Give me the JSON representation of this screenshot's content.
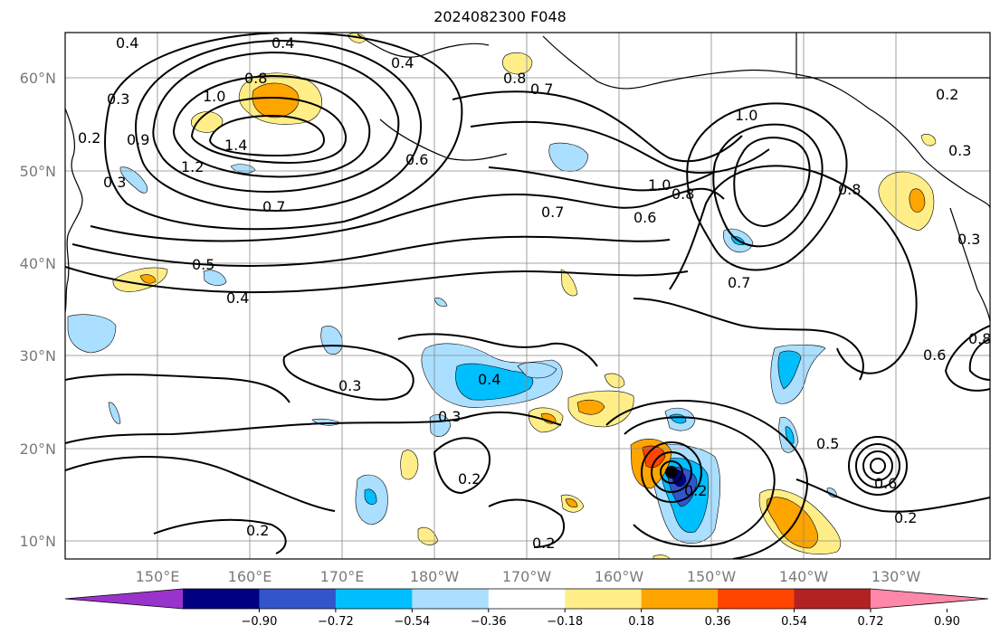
{
  "title": "2024082300 F048",
  "map": {
    "lat_labels": [
      "60°N",
      "50°N",
      "40°N",
      "30°N",
      "20°N",
      "10°N"
    ],
    "lon_labels": [
      "150°E",
      "160°E",
      "170°E",
      "180°W",
      "170°W",
      "160°W",
      "150°W",
      "140°W",
      "130°W"
    ],
    "contour_labels": [
      "0.4",
      "0.4",
      "0.4",
      "0.8",
      "0.8",
      "0.7",
      "1.0",
      "1.4",
      "1.2",
      "1.0",
      "1.0",
      "0.8",
      "0.7",
      "0.6",
      "0.7",
      "0.5",
      "0.4",
      "0.3",
      "0.3",
      "0.4",
      "0.3",
      "0.2",
      "0.2",
      "0.2",
      "0.2",
      "0.5",
      "0.6",
      "0.6",
      "0.7",
      "0.3",
      "0.2",
      "0.3",
      "0.2",
      "0.9",
      "0.8",
      "0.6",
      "0.3",
      "0.2",
      "0.8"
    ]
  },
  "colorbar": {
    "colors": [
      "#9933cc",
      "#000080",
      "#3355cc",
      "#00bfff",
      "#aadfff",
      "#ffffff",
      "#ffee88",
      "#ffa500",
      "#ff4500",
      "#b22222",
      "#ff88aa"
    ],
    "ticks": [
      "−0.90",
      "−0.72",
      "−0.54",
      "−0.36",
      "−0.18",
      "0.18",
      "0.36",
      "0.54",
      "0.72",
      "0.90"
    ]
  }
}
